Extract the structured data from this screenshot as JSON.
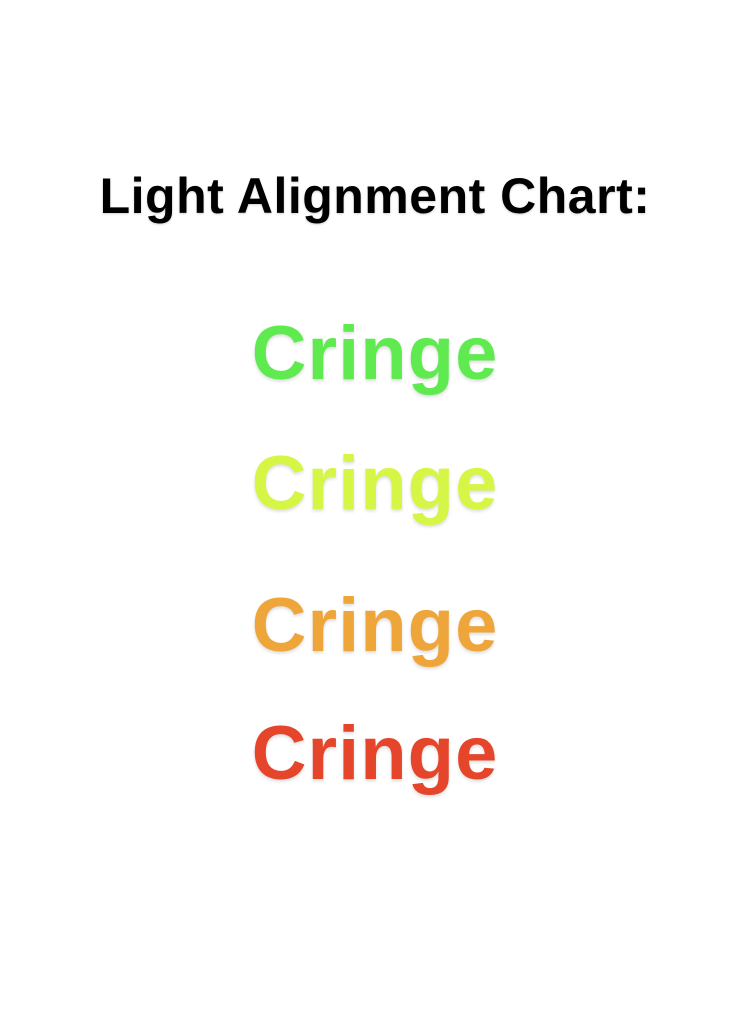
{
  "title": "Light Alignment Chart:",
  "rows": [
    {
      "label": "Cringe",
      "color": "#5fea50"
    },
    {
      "label": "Cringe",
      "color": "#d5f645"
    },
    {
      "label": "Cringe",
      "color": "#eea53a"
    },
    {
      "label": "Cringe",
      "color": "#e5462b"
    }
  ]
}
